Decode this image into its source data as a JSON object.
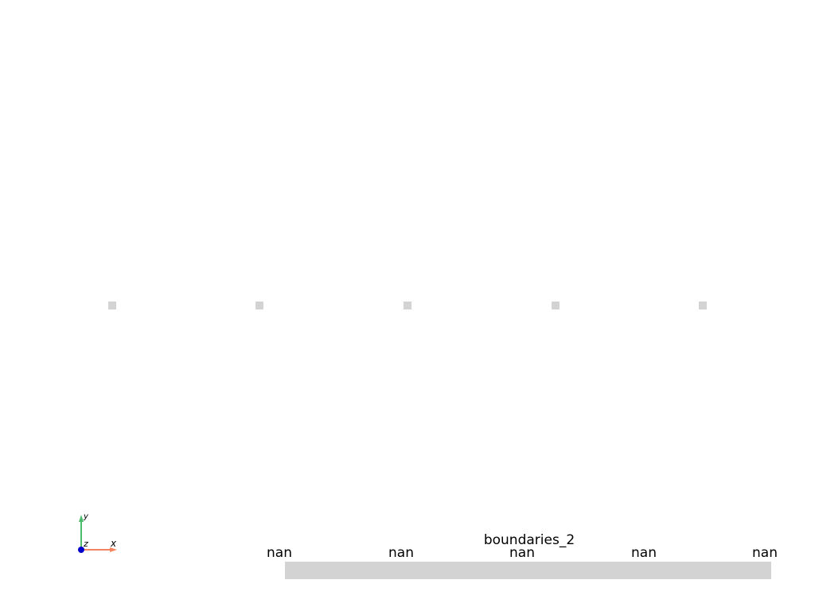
{
  "colors": {
    "background": "#ffffff",
    "point_color": "#d3d3d3",
    "colorbar_color": "#d3d3d3",
    "x_axis_color": "#f4845f",
    "y_axis_color": "#4cbb6c",
    "z_axis_color": "#0000cc"
  },
  "scalar_bar": {
    "title": "boundaries_2",
    "ticks": [
      "nan",
      "nan",
      "nan",
      "nan",
      "nan"
    ]
  },
  "axes_widget": {
    "x_label": "x",
    "y_label": "y",
    "z_label": "z"
  },
  "points": {
    "count": 5
  }
}
